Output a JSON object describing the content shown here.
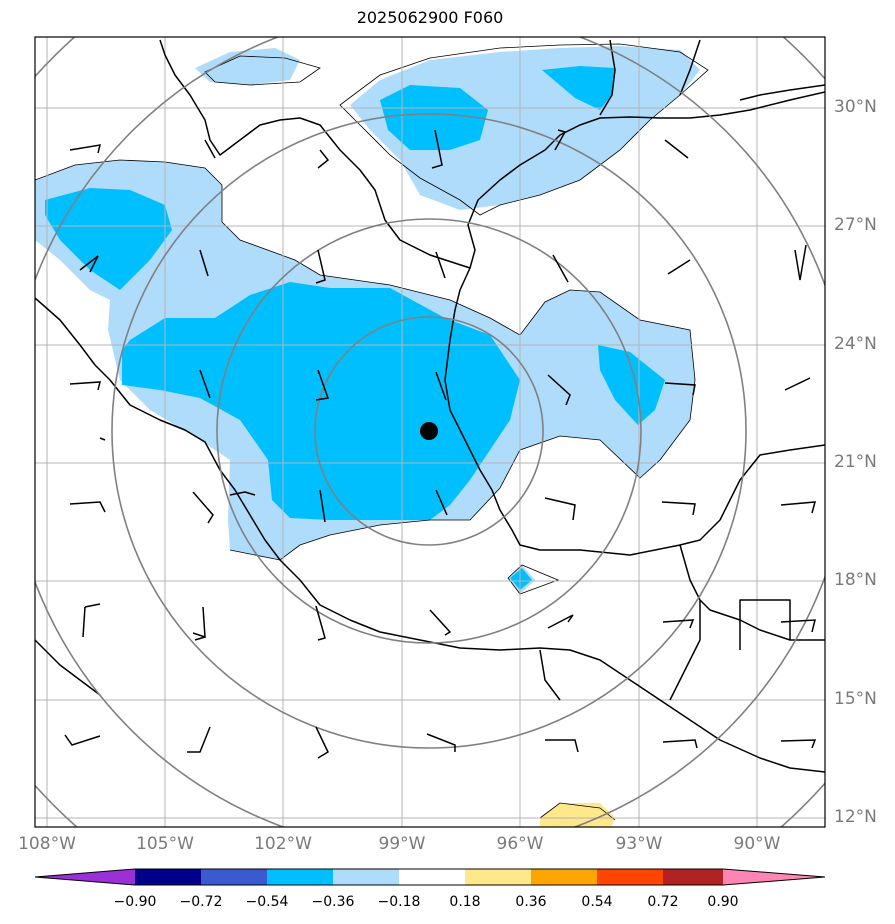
{
  "title": "2025062900 F060",
  "map": {
    "lat_labels": [
      "30°N",
      "27°N",
      "24°N",
      "21°N",
      "18°N",
      "15°N",
      "12°N"
    ],
    "lon_labels": [
      "108°W",
      "105°W",
      "102°W",
      "99°W",
      "96°W",
      "93°W",
      "90°W"
    ],
    "center_marker": "black-dot",
    "range_rings": 5,
    "shading_colors": {
      "light_blue": "#afdcfb",
      "blue": "#00bfff",
      "yellow": "#ffe88a"
    }
  },
  "colorbar": {
    "ticks": [
      "−0.90",
      "−0.72",
      "−0.54",
      "−0.36",
      "−0.18",
      "0.18",
      "0.36",
      "0.54",
      "0.72",
      "0.90"
    ],
    "colors": [
      "#9b30d9",
      "#00008b",
      "#3a5bd0",
      "#00bfff",
      "#afdcfb",
      "#ffffff",
      "#ffe88a",
      "#ffa500",
      "#ff4500",
      "#b22222",
      "#ff85b4"
    ]
  }
}
